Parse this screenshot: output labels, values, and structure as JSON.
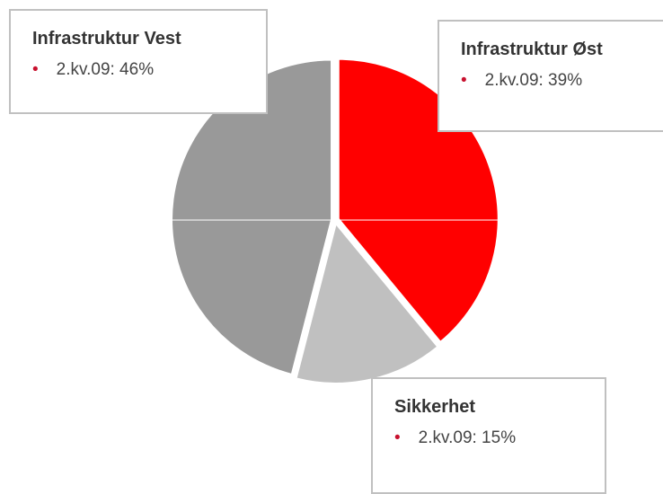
{
  "chart_data": {
    "type": "pie",
    "categories": [
      "Infrastruktur Øst",
      "Sikkerhet",
      "Infrastruktur Vest"
    ],
    "values": [
      39,
      15,
      46
    ],
    "value_labels": [
      "2.kv.09: 39%",
      "2.kv.09: 15%",
      "2.kv.09: 46%"
    ],
    "colors": [
      "#ff0000",
      "#c0c0c0",
      "#999999"
    ]
  }
}
